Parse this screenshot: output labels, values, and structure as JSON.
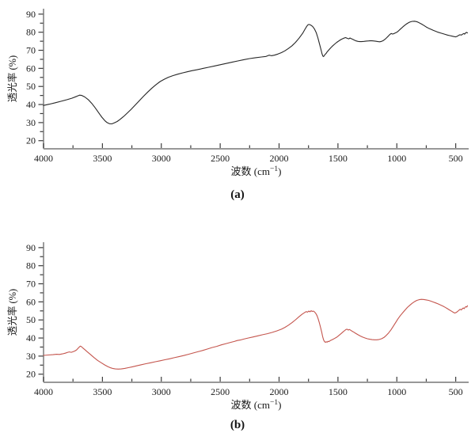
{
  "page": {
    "background": "#ffffff"
  },
  "chart_data": [
    {
      "id": "a",
      "type": "line",
      "caption": "(a)",
      "series_name": "spectrum-a-black",
      "xlabel": {
        "pre": "波数 (cm",
        "sup": "−1",
        "post": ")"
      },
      "ylabel": "透光率 (%)",
      "x_ticks": [
        4000,
        3500,
        3000,
        2500,
        2000,
        1500,
        1000,
        500
      ],
      "x_minor_step": 250,
      "y_ticks": [
        20,
        30,
        40,
        50,
        60,
        70,
        80,
        90
      ],
      "y_minor_step": 5,
      "x_range": [
        4000,
        390
      ],
      "y_range": [
        15.5,
        93
      ],
      "grid": false,
      "legend": null,
      "line_color": "#262626",
      "axis_color": "#8a8a8a",
      "tick_color": "#3c3c3c",
      "text_color": "#1a1a1a",
      "points": [
        [
          4000,
          39.5
        ],
        [
          3950,
          40.2
        ],
        [
          3900,
          41
        ],
        [
          3850,
          41.8
        ],
        [
          3800,
          42.7
        ],
        [
          3760,
          43.5
        ],
        [
          3720,
          44.5
        ],
        [
          3695,
          45.2
        ],
        [
          3675,
          45
        ],
        [
          3650,
          44.2
        ],
        [
          3620,
          42.7
        ],
        [
          3590,
          40.6
        ],
        [
          3560,
          38
        ],
        [
          3530,
          35.3
        ],
        [
          3505,
          33
        ],
        [
          3480,
          31.1
        ],
        [
          3460,
          30
        ],
        [
          3440,
          29.4
        ],
        [
          3420,
          29.3
        ],
        [
          3400,
          29.8
        ],
        [
          3375,
          30.6
        ],
        [
          3350,
          31.8
        ],
        [
          3320,
          33.4
        ],
        [
          3290,
          35.2
        ],
        [
          3255,
          37.4
        ],
        [
          3220,
          39.8
        ],
        [
          3185,
          42.2
        ],
        [
          3150,
          44.6
        ],
        [
          3115,
          46.9
        ],
        [
          3080,
          49.1
        ],
        [
          3045,
          51
        ],
        [
          3010,
          52.7
        ],
        [
          2975,
          54
        ],
        [
          2940,
          55.1
        ],
        [
          2900,
          56
        ],
        [
          2860,
          56.8
        ],
        [
          2820,
          57.5
        ],
        [
          2780,
          58.1
        ],
        [
          2740,
          58.7
        ],
        [
          2700,
          59.2
        ],
        [
          2650,
          59.9
        ],
        [
          2600,
          60.6
        ],
        [
          2550,
          61.3
        ],
        [
          2500,
          62
        ],
        [
          2450,
          62.7
        ],
        [
          2400,
          63.4
        ],
        [
          2350,
          64.1
        ],
        [
          2300,
          64.8
        ],
        [
          2250,
          65.4
        ],
        [
          2200,
          65.9
        ],
        [
          2150,
          66.3
        ],
        [
          2110,
          66.6
        ],
        [
          2085,
          67.3
        ],
        [
          2065,
          67
        ],
        [
          2040,
          67.3
        ],
        [
          2010,
          67.9
        ],
        [
          1980,
          68.7
        ],
        [
          1950,
          69.7
        ],
        [
          1920,
          71
        ],
        [
          1890,
          72.5
        ],
        [
          1860,
          74.4
        ],
        [
          1830,
          76.7
        ],
        [
          1800,
          79.4
        ],
        [
          1780,
          81.6
        ],
        [
          1765,
          83.3
        ],
        [
          1755,
          84.1
        ],
        [
          1745,
          84.3
        ],
        [
          1730,
          83.9
        ],
        [
          1715,
          83.2
        ],
        [
          1700,
          81.9
        ],
        [
          1685,
          79.8
        ],
        [
          1670,
          76.8
        ],
        [
          1660,
          74.3
        ],
        [
          1650,
          71.8
        ],
        [
          1642,
          69.8
        ],
        [
          1635,
          68
        ],
        [
          1628,
          66.8
        ],
        [
          1622,
          66.5
        ],
        [
          1615,
          67.2
        ],
        [
          1608,
          67.8
        ],
        [
          1600,
          68.3
        ],
        [
          1592,
          69.1
        ],
        [
          1580,
          70
        ],
        [
          1565,
          71.1
        ],
        [
          1550,
          72.1
        ],
        [
          1530,
          73.3
        ],
        [
          1510,
          74.4
        ],
        [
          1490,
          75.3
        ],
        [
          1470,
          76.1
        ],
        [
          1450,
          76.7
        ],
        [
          1435,
          77
        ],
        [
          1420,
          76.6
        ],
        [
          1408,
          76.3
        ],
        [
          1398,
          76.8
        ],
        [
          1388,
          76.5
        ],
        [
          1375,
          76.1
        ],
        [
          1360,
          75.6
        ],
        [
          1345,
          75.2
        ],
        [
          1330,
          74.9
        ],
        [
          1315,
          74.8
        ],
        [
          1300,
          74.8
        ],
        [
          1280,
          74.9
        ],
        [
          1260,
          75.1
        ],
        [
          1240,
          75.2
        ],
        [
          1220,
          75.3
        ],
        [
          1200,
          75.2
        ],
        [
          1180,
          75
        ],
        [
          1160,
          74.8
        ],
        [
          1145,
          74.7
        ],
        [
          1130,
          74.9
        ],
        [
          1115,
          75.4
        ],
        [
          1100,
          76.1
        ],
        [
          1085,
          77
        ],
        [
          1070,
          78
        ],
        [
          1058,
          78.8
        ],
        [
          1048,
          79.3
        ],
        [
          1038,
          79
        ],
        [
          1028,
          79.1
        ],
        [
          1015,
          79.5
        ],
        [
          1000,
          80
        ],
        [
          985,
          80.8
        ],
        [
          970,
          81.7
        ],
        [
          950,
          82.9
        ],
        [
          930,
          84
        ],
        [
          910,
          84.9
        ],
        [
          890,
          85.6
        ],
        [
          870,
          86
        ],
        [
          850,
          86.1
        ],
        [
          830,
          85.8
        ],
        [
          810,
          85.2
        ],
        [
          790,
          84.5
        ],
        [
          770,
          83.7
        ],
        [
          750,
          82.9
        ],
        [
          730,
          82.2
        ],
        [
          710,
          81.6
        ],
        [
          690,
          81
        ],
        [
          670,
          80.5
        ],
        [
          650,
          80
        ],
        [
          630,
          79.6
        ],
        [
          610,
          79.2
        ],
        [
          590,
          78.8
        ],
        [
          570,
          78.4
        ],
        [
          550,
          78.1
        ],
        [
          530,
          77.8
        ],
        [
          515,
          77.6
        ],
        [
          500,
          77.4
        ],
        [
          488,
          77.7
        ],
        [
          476,
          78.2
        ],
        [
          464,
          78.6
        ],
        [
          452,
          78.4
        ],
        [
          442,
          78.9
        ],
        [
          432,
          79.3
        ],
        [
          424,
          78.9
        ],
        [
          416,
          79.6
        ],
        [
          408,
          79.9
        ],
        [
          400,
          79.6
        ]
      ]
    },
    {
      "id": "b",
      "type": "line",
      "caption": "(b)",
      "series_name": "spectrum-b-red",
      "xlabel": {
        "pre": "波数 (cm",
        "sup": "−1",
        "post": ")"
      },
      "ylabel": "透光率 (%)",
      "x_ticks": [
        4000,
        3500,
        3000,
        2500,
        2000,
        1500,
        1000,
        500
      ],
      "x_minor_step": 250,
      "y_ticks": [
        20,
        30,
        40,
        50,
        60,
        70,
        80,
        90
      ],
      "y_minor_step": 5,
      "x_range": [
        4000,
        390
      ],
      "y_range": [
        15.5,
        93
      ],
      "grid": false,
      "legend": null,
      "line_color": "#c4554d",
      "axis_color": "#8a8a8a",
      "tick_color": "#3c3c3c",
      "text_color": "#1a1a1a",
      "points": [
        [
          4000,
          30.4
        ],
        [
          3960,
          30.6
        ],
        [
          3920,
          30.8
        ],
        [
          3890,
          31
        ],
        [
          3865,
          30.9
        ],
        [
          3840,
          31.2
        ],
        [
          3815,
          31.6
        ],
        [
          3795,
          32.1
        ],
        [
          3780,
          32.3
        ],
        [
          3765,
          32.1
        ],
        [
          3750,
          32.4
        ],
        [
          3735,
          32.8
        ],
        [
          3720,
          33.4
        ],
        [
          3708,
          34.2
        ],
        [
          3697,
          35
        ],
        [
          3688,
          35.5
        ],
        [
          3678,
          35.2
        ],
        [
          3668,
          34.6
        ],
        [
          3650,
          33.6
        ],
        [
          3625,
          32.2
        ],
        [
          3600,
          30.8
        ],
        [
          3570,
          29.1
        ],
        [
          3540,
          27.6
        ],
        [
          3510,
          26.3
        ],
        [
          3480,
          25.1
        ],
        [
          3455,
          24.2
        ],
        [
          3430,
          23.5
        ],
        [
          3410,
          23.1
        ],
        [
          3390,
          22.9
        ],
        [
          3365,
          22.8
        ],
        [
          3340,
          22.9
        ],
        [
          3310,
          23.2
        ],
        [
          3280,
          23.6
        ],
        [
          3245,
          24.1
        ],
        [
          3210,
          24.6
        ],
        [
          3170,
          25.2
        ],
        [
          3130,
          25.8
        ],
        [
          3090,
          26.3
        ],
        [
          3050,
          26.9
        ],
        [
          3010,
          27.4
        ],
        [
          2970,
          28
        ],
        [
          2930,
          28.5
        ],
        [
          2890,
          29.1
        ],
        [
          2850,
          29.7
        ],
        [
          2810,
          30.3
        ],
        [
          2770,
          31
        ],
        [
          2730,
          31.7
        ],
        [
          2690,
          32.4
        ],
        [
          2650,
          33.1
        ],
        [
          2610,
          33.9
        ],
        [
          2570,
          34.7
        ],
        [
          2530,
          35.4
        ],
        [
          2490,
          36.2
        ],
        [
          2450,
          36.9
        ],
        [
          2410,
          37.6
        ],
        [
          2380,
          38.1
        ],
        [
          2355,
          38.6
        ],
        [
          2330,
          38.9
        ],
        [
          2300,
          39.4
        ],
        [
          2260,
          40
        ],
        [
          2220,
          40.6
        ],
        [
          2180,
          41.2
        ],
        [
          2140,
          41.8
        ],
        [
          2100,
          42.4
        ],
        [
          2060,
          43.1
        ],
        [
          2020,
          43.9
        ],
        [
          1980,
          44.9
        ],
        [
          1950,
          45.9
        ],
        [
          1920,
          47.1
        ],
        [
          1890,
          48.5
        ],
        [
          1860,
          50.1
        ],
        [
          1830,
          51.8
        ],
        [
          1805,
          53.1
        ],
        [
          1785,
          54
        ],
        [
          1770,
          54.6
        ],
        [
          1758,
          54.3
        ],
        [
          1748,
          54.9
        ],
        [
          1738,
          54.5
        ],
        [
          1728,
          55.1
        ],
        [
          1718,
          54.7
        ],
        [
          1708,
          54.9
        ],
        [
          1698,
          54.4
        ],
        [
          1688,
          53.6
        ],
        [
          1678,
          52.4
        ],
        [
          1668,
          50.6
        ],
        [
          1658,
          48.4
        ],
        [
          1648,
          45.9
        ],
        [
          1638,
          43.2
        ],
        [
          1630,
          40.9
        ],
        [
          1622,
          39
        ],
        [
          1614,
          38
        ],
        [
          1607,
          37.6
        ],
        [
          1600,
          37.9
        ],
        [
          1592,
          37.7
        ],
        [
          1584,
          38.2
        ],
        [
          1576,
          38
        ],
        [
          1568,
          38.5
        ],
        [
          1558,
          38.8
        ],
        [
          1545,
          39.2
        ],
        [
          1530,
          39.7
        ],
        [
          1515,
          40.3
        ],
        [
          1500,
          41
        ],
        [
          1485,
          41.8
        ],
        [
          1470,
          42.6
        ],
        [
          1455,
          43.5
        ],
        [
          1442,
          44.2
        ],
        [
          1432,
          44.7
        ],
        [
          1422,
          44.9
        ],
        [
          1412,
          44.4
        ],
        [
          1402,
          44.7
        ],
        [
          1392,
          44.3
        ],
        [
          1380,
          43.8
        ],
        [
          1365,
          43.2
        ],
        [
          1350,
          42.6
        ],
        [
          1330,
          41.8
        ],
        [
          1310,
          41.1
        ],
        [
          1290,
          40.5
        ],
        [
          1270,
          40
        ],
        [
          1250,
          39.6
        ],
        [
          1230,
          39.3
        ],
        [
          1210,
          39.1
        ],
        [
          1190,
          39
        ],
        [
          1170,
          39
        ],
        [
          1150,
          39.2
        ],
        [
          1130,
          39.6
        ],
        [
          1110,
          40.3
        ],
        [
          1090,
          41.4
        ],
        [
          1070,
          42.8
        ],
        [
          1050,
          44.5
        ],
        [
          1030,
          46.5
        ],
        [
          1010,
          48.6
        ],
        [
          990,
          50.6
        ],
        [
          970,
          52.4
        ],
        [
          950,
          54
        ],
        [
          930,
          55.5
        ],
        [
          910,
          56.9
        ],
        [
          890,
          58.1
        ],
        [
          870,
          59.2
        ],
        [
          850,
          60.1
        ],
        [
          830,
          60.8
        ],
        [
          810,
          61.2
        ],
        [
          790,
          61.4
        ],
        [
          770,
          61.3
        ],
        [
          750,
          61.1
        ],
        [
          730,
          60.8
        ],
        [
          710,
          60.4
        ],
        [
          690,
          59.9
        ],
        [
          670,
          59.4
        ],
        [
          650,
          58.9
        ],
        [
          630,
          58.3
        ],
        [
          610,
          57.7
        ],
        [
          590,
          57
        ],
        [
          570,
          56.2
        ],
        [
          550,
          55.4
        ],
        [
          535,
          54.8
        ],
        [
          520,
          54.2
        ],
        [
          508,
          53.8
        ],
        [
          496,
          54.1
        ],
        [
          484,
          54.7
        ],
        [
          472,
          55.4
        ],
        [
          462,
          55.9
        ],
        [
          452,
          55.5
        ],
        [
          444,
          56.2
        ],
        [
          436,
          56.6
        ],
        [
          428,
          56.2
        ],
        [
          420,
          57
        ],
        [
          412,
          57.4
        ],
        [
          406,
          57.1
        ],
        [
          400,
          57.9
        ]
      ]
    }
  ]
}
